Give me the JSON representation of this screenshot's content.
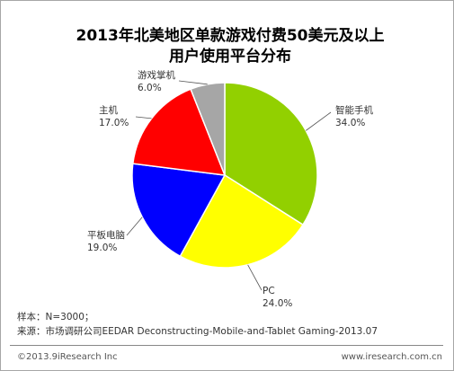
{
  "chart_data": {
    "type": "pie",
    "title_line1": "2013年北美地区单款游戏付费50美元及以上",
    "title_line2": "用户使用平台分布",
    "slices": [
      {
        "label": "智能手机",
        "value": 34.0,
        "pct_text": "34.0%",
        "color": "#92d000"
      },
      {
        "label": "PC",
        "value": 24.0,
        "pct_text": "24.0%",
        "color": "#ffff00"
      },
      {
        "label": "平板电脑",
        "value": 19.0,
        "pct_text": "19.0%",
        "color": "#0000ff"
      },
      {
        "label": "主机",
        "value": 17.0,
        "pct_text": "17.0%",
        "color": "#ff0000"
      },
      {
        "label": "游戏掌机",
        "value": 6.0,
        "pct_text": "6.0%",
        "color": "#a6a6a6"
      }
    ]
  },
  "notes": {
    "sample": "样本：N=3000；",
    "source": "来源：市场调研公司EEDAR Deconstructing-Mobile-and-Tablet Gaming-2013.07"
  },
  "footer": {
    "copyright": "©2013.9iResearch Inc",
    "website": "www.iresearch.com.cn"
  }
}
